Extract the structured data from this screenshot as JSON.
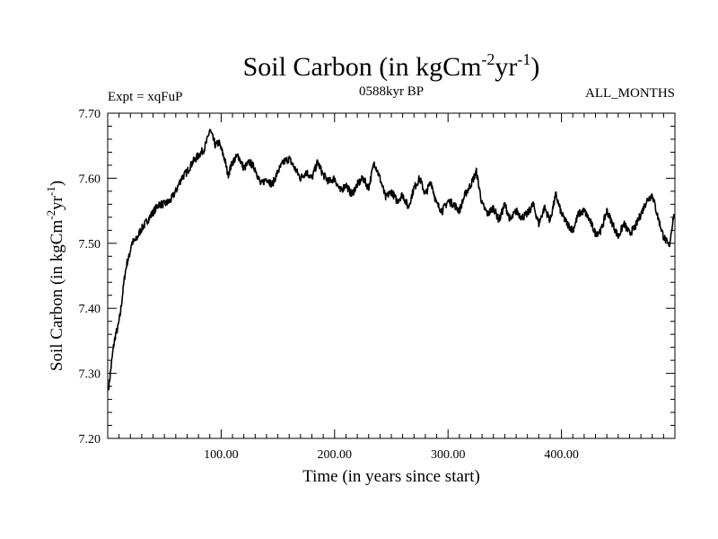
{
  "chart_data": {
    "type": "line",
    "title": {
      "main": "Soil Carbon (in kgCm",
      "sup1": "-2",
      "mid": "yr",
      "sup2": "-1",
      "end": ")"
    },
    "subtitle_left": "Expt = xqFuP",
    "subtitle_center": "0588kyr BP",
    "subtitle_right": "ALL_MONTHS",
    "xlabel": "Time (in years since start)",
    "ylabel": {
      "main": "Soil Carbon (in kgCm",
      "sup1": "-2",
      "mid": "yr",
      "sup2": "-1",
      "end": ")"
    },
    "xlim": [
      0,
      500
    ],
    "ylim": [
      7.2,
      7.7
    ],
    "x_ticks": [
      100,
      200,
      300,
      400
    ],
    "x_tick_labels": [
      "100.00",
      "200.00",
      "300.00",
      "400.00"
    ],
    "y_ticks": [
      7.2,
      7.3,
      7.4,
      7.5,
      7.6,
      7.7
    ],
    "y_tick_labels": [
      "7.20",
      "7.30",
      "7.40",
      "7.50",
      "7.60",
      "7.70"
    ],
    "series": [
      {
        "name": "Soil Carbon",
        "color": "#000000",
        "x": [
          1,
          3,
          5,
          7,
          9,
          11,
          13,
          15,
          17,
          19,
          21,
          25,
          29,
          33,
          37,
          41,
          45,
          50,
          55,
          60,
          65,
          70,
          75,
          80,
          85,
          88,
          90,
          92,
          95,
          98,
          100,
          103,
          106,
          110,
          115,
          120,
          125,
          130,
          135,
          140,
          145,
          150,
          155,
          160,
          165,
          170,
          175,
          180,
          185,
          190,
          195,
          200,
          205,
          210,
          215,
          220,
          225,
          230,
          235,
          240,
          245,
          250,
          255,
          260,
          265,
          270,
          275,
          280,
          285,
          290,
          295,
          300,
          305,
          310,
          315,
          320,
          325,
          330,
          335,
          340,
          345,
          350,
          355,
          360,
          365,
          370,
          375,
          380,
          385,
          390,
          395,
          400,
          405,
          410,
          415,
          420,
          425,
          430,
          435,
          440,
          445,
          450,
          455,
          460,
          465,
          470,
          475,
          480,
          485,
          490,
          495,
          499
        ],
        "values": [
          7.28,
          7.31,
          7.34,
          7.36,
          7.37,
          7.39,
          7.42,
          7.45,
          7.47,
          7.48,
          7.5,
          7.505,
          7.52,
          7.53,
          7.54,
          7.55,
          7.56,
          7.56,
          7.565,
          7.58,
          7.6,
          7.61,
          7.625,
          7.635,
          7.645,
          7.66,
          7.675,
          7.665,
          7.65,
          7.655,
          7.645,
          7.63,
          7.605,
          7.625,
          7.635,
          7.615,
          7.625,
          7.615,
          7.59,
          7.6,
          7.59,
          7.61,
          7.625,
          7.63,
          7.615,
          7.6,
          7.61,
          7.6,
          7.625,
          7.605,
          7.595,
          7.6,
          7.58,
          7.59,
          7.575,
          7.59,
          7.6,
          7.585,
          7.625,
          7.6,
          7.57,
          7.58,
          7.565,
          7.575,
          7.555,
          7.585,
          7.6,
          7.575,
          7.595,
          7.56,
          7.55,
          7.565,
          7.56,
          7.55,
          7.575,
          7.59,
          7.61,
          7.56,
          7.545,
          7.555,
          7.535,
          7.56,
          7.535,
          7.55,
          7.54,
          7.545,
          7.56,
          7.53,
          7.555,
          7.535,
          7.575,
          7.545,
          7.53,
          7.52,
          7.545,
          7.55,
          7.535,
          7.515,
          7.52,
          7.55,
          7.53,
          7.51,
          7.53,
          7.515,
          7.525,
          7.545,
          7.565,
          7.575,
          7.54,
          7.51,
          7.495,
          7.545
        ]
      }
    ]
  }
}
